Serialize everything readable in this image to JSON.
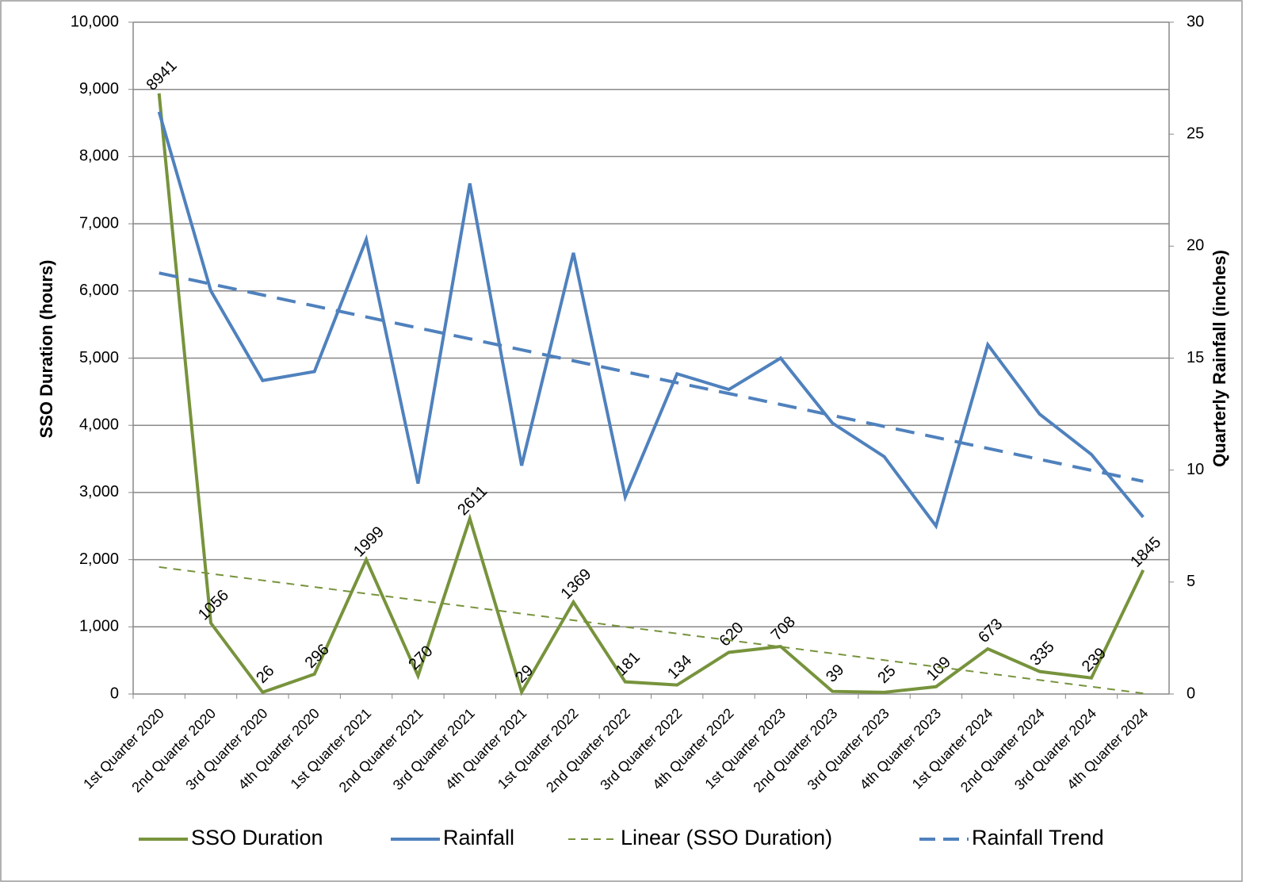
{
  "chart_data": {
    "type": "line",
    "categories": [
      "1st Quarter 2020",
      "2nd Quarter 2020",
      "3rd Quarter 2020",
      "4th Quarter 2020",
      "1st Quarter 2021",
      "2nd Quarter 2021",
      "3rd Quarter 2021",
      "4th Quarter 2021",
      "1st Quarter 2022",
      "2nd Quarter 2022",
      "3rd Quarter 2022",
      "4th Quarter 2022",
      "1st Quarter 2023",
      "2nd Quarter 2023",
      "3rd Quarter 2023",
      "4th Quarter 2023",
      "1st Quarter 2024",
      "2nd Quarter 2024",
      "3rd Quarter 2024",
      "4th Quarter 2024"
    ],
    "y_label": "SSO Duration (hours)",
    "y2_label": "Quarterly Rainfall (inches)",
    "ylim": [
      0,
      10000
    ],
    "yticks": [
      0,
      {
        "value": 1000,
        "label": "1,000"
      },
      {
        "value": 2000,
        "label": "2,000"
      },
      {
        "value": 3000,
        "label": "3,000"
      },
      {
        "value": 4000,
        "label": "4,000"
      },
      {
        "value": 5000,
        "label": "5,000"
      },
      {
        "value": 6000,
        "label": "6,000"
      },
      {
        "value": 7000,
        "label": "7,000"
      },
      {
        "value": 8000,
        "label": "8,000"
      },
      {
        "value": 9000,
        "label": "9,000"
      },
      {
        "value": 10000,
        "label": "10,000"
      }
    ],
    "y2lim": [
      0,
      30
    ],
    "y2ticks": [
      0,
      5,
      10,
      15,
      20,
      25,
      30
    ],
    "grid": true,
    "legend": "bottom",
    "series": [
      {
        "name": "SSO Duration",
        "color": "#77933c",
        "linewidth": 4,
        "linestyle": "solid",
        "data_labels": true,
        "values": [
          8941,
          1056,
          26,
          296,
          1999,
          270,
          2611,
          29,
          1369,
          181,
          134,
          620,
          708,
          39,
          25,
          109,
          673,
          335,
          239,
          1845
        ]
      },
      {
        "name": "Rainfall",
        "color": "#4f81bd",
        "axis": "y2",
        "linewidth": 4,
        "linestyle": "solid",
        "values": [
          26.0,
          18.0,
          14.0,
          14.4,
          20.3,
          9.4,
          22.8,
          10.2,
          19.7,
          8.8,
          14.3,
          13.6,
          15.0,
          12.1,
          10.6,
          7.5,
          15.6,
          12.5,
          10.7,
          7.9
        ]
      },
      {
        "name": "Linear (SSO Duration)",
        "color": "#77933c",
        "linewidth": 2,
        "linestyle": "dashed",
        "values": [
          1890,
          1791,
          1692,
          1593,
          1494,
          1395,
          1296,
          1197,
          1098,
          999,
          900,
          801,
          703,
          604,
          505,
          406,
          307,
          208,
          109,
          10
        ]
      },
      {
        "name": "Rainfall Trend",
        "color": "#4f81bd",
        "axis": "y2",
        "linewidth": 4,
        "linestyle": "dashed",
        "values": [
          18.8,
          18.31,
          17.82,
          17.33,
          16.84,
          16.35,
          15.86,
          15.37,
          14.88,
          14.39,
          13.9,
          13.42,
          12.93,
          12.44,
          11.95,
          11.46,
          10.97,
          10.48,
          9.99,
          9.5
        ]
      }
    ]
  }
}
